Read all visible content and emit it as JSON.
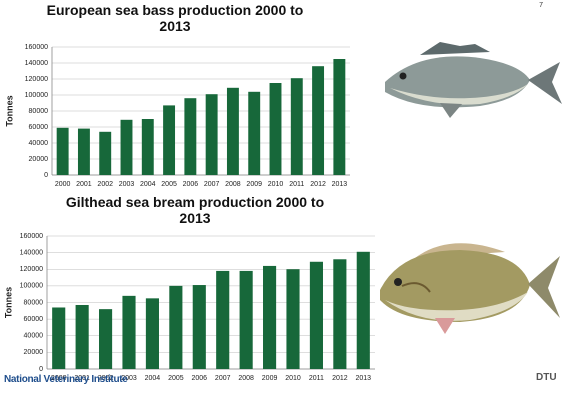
{
  "page_number": "7",
  "footer": "National Veterinary Institute",
  "logo": "DTU",
  "chart_data": [
    {
      "type": "bar",
      "title": "European sea bass production 2000 to 2013",
      "y_label": "Tonnes",
      "categories": [
        "2000",
        "2001",
        "2002",
        "2003",
        "2004",
        "2005",
        "2006",
        "2007",
        "2008",
        "2009",
        "2010",
        "2011",
        "2012",
        "2013"
      ],
      "values": [
        59000,
        58000,
        54000,
        69000,
        70000,
        87000,
        96000,
        101000,
        109000,
        104000,
        115000,
        121000,
        136000,
        145000
      ],
      "color": "#17683a",
      "ylim": [
        0,
        160000
      ],
      "yticks": [
        0,
        20000,
        40000,
        60000,
        80000,
        100000,
        120000,
        140000,
        160000
      ],
      "grid": true
    },
    {
      "type": "bar",
      "title": "Gilthead sea bream production 2000 to 2013",
      "y_label": "Tonnes",
      "categories": [
        "2000",
        "2001",
        "2002",
        "2003",
        "2004",
        "2005",
        "2006",
        "2007",
        "2008",
        "2009",
        "2010",
        "2011",
        "2012",
        "2013"
      ],
      "values": [
        74000,
        77000,
        72000,
        88000,
        85000,
        100000,
        101000,
        118000,
        118000,
        124000,
        120000,
        129000,
        132000,
        141000
      ],
      "color": "#17683a",
      "ylim": [
        0,
        160000
      ],
      "yticks": [
        0,
        20000,
        40000,
        60000,
        80000,
        100000,
        120000,
        140000,
        160000
      ],
      "grid": true
    }
  ]
}
